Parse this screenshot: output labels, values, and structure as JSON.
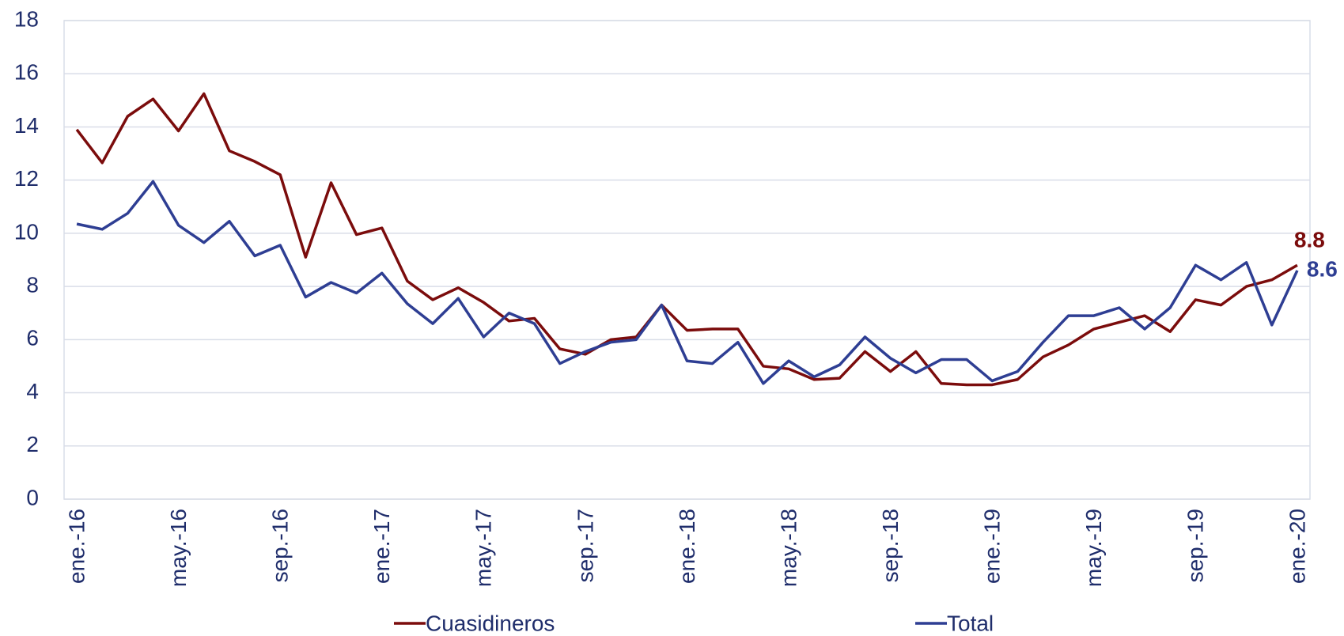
{
  "chart_data": {
    "type": "line",
    "categories": [
      "ene.-16",
      null,
      null,
      null,
      "may.-16",
      null,
      null,
      null,
      "sep.-16",
      null,
      null,
      null,
      "ene.-17",
      null,
      null,
      null,
      "may.-17",
      null,
      null,
      null,
      "sep.-17",
      null,
      null,
      null,
      "ene.-18",
      null,
      null,
      null,
      "may.-18",
      null,
      null,
      null,
      "sep.-18",
      null,
      null,
      null,
      "ene.-19",
      null,
      null,
      null,
      "may.-19",
      null,
      null,
      null,
      "sep.-19",
      null,
      null,
      null,
      "ene.-20"
    ],
    "series": [
      {
        "name": "Cuasidineros",
        "color": "#7b0c0c",
        "values": [
          13.9,
          12.65,
          14.4,
          15.05,
          13.85,
          15.25,
          13.1,
          12.7,
          12.2,
          9.1,
          11.9,
          9.95,
          10.2,
          8.2,
          7.5,
          7.95,
          7.4,
          6.7,
          6.8,
          5.65,
          5.45,
          6.0,
          6.1,
          7.3,
          6.35,
          6.4,
          6.4,
          5.0,
          4.9,
          4.5,
          4.55,
          5.55,
          4.8,
          5.55,
          4.35,
          4.3,
          4.3,
          4.5,
          5.35,
          5.8,
          6.4,
          6.65,
          6.9,
          6.3,
          7.5,
          7.3,
          8.0,
          8.25,
          8.8
        ]
      },
      {
        "name": "Total",
        "color": "#2e3e93",
        "values": [
          10.35,
          10.15,
          10.75,
          11.95,
          10.3,
          9.65,
          10.45,
          9.15,
          9.55,
          7.6,
          8.15,
          7.75,
          8.5,
          7.35,
          6.6,
          7.55,
          6.1,
          7.0,
          6.6,
          5.1,
          5.55,
          5.9,
          6.0,
          7.3,
          5.2,
          5.1,
          5.9,
          4.35,
          5.2,
          4.6,
          5.05,
          6.1,
          5.3,
          4.75,
          5.25,
          5.25,
          4.45,
          4.8,
          5.9,
          6.9,
          6.9,
          7.2,
          6.4,
          7.2,
          8.8,
          8.25,
          8.9,
          6.55,
          8.6
        ]
      }
    ],
    "ylim": [
      0,
      18
    ],
    "yticks": [
      0,
      2,
      4,
      6,
      8,
      10,
      12,
      14,
      16,
      18
    ],
    "grid": true,
    "legend": "bottom"
  }
}
